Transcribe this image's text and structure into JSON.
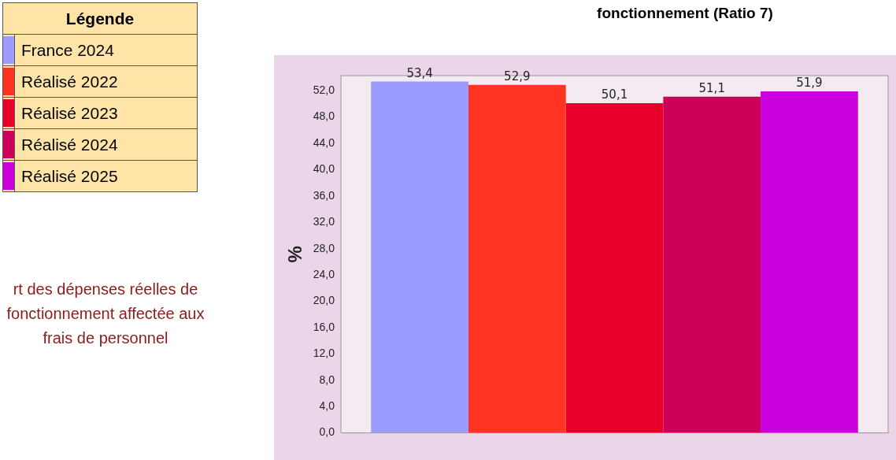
{
  "chart_data": {
    "type": "bar",
    "title": "fonctionnement (Ratio 7)",
    "ylabel": "%",
    "legend_title": "Légende",
    "categories": [
      null
    ],
    "series": [
      {
        "name": "France 2024",
        "color": "#9c9cff",
        "values": [
          53.4
        ],
        "value_labels": [
          "53,4"
        ]
      },
      {
        "name": "Réalisé 2022",
        "color": "#ff3322",
        "values": [
          52.9
        ],
        "value_labels": [
          "52,9"
        ]
      },
      {
        "name": "Réalisé 2023",
        "color": "#e8002a",
        "values": [
          50.1
        ],
        "value_labels": [
          "50,1"
        ]
      },
      {
        "name": "Réalisé 2024",
        "color": "#cc0058",
        "values": [
          51.1
        ],
        "value_labels": [
          "51,1"
        ]
      },
      {
        "name": "Réalisé 2025",
        "color": "#cc00dd",
        "values": [
          51.9
        ],
        "value_labels": [
          "51,9"
        ]
      }
    ],
    "ylim": [
      0,
      54.3
    ],
    "yticks": [
      {
        "value": 0,
        "label": "0,0"
      },
      {
        "value": 4,
        "label": "4,0"
      },
      {
        "value": 8,
        "label": "8,0"
      },
      {
        "value": 12,
        "label": "12,0"
      },
      {
        "value": 16,
        "label": "16,0"
      },
      {
        "value": 20,
        "label": "20,0"
      },
      {
        "value": 24,
        "label": "24,0"
      },
      {
        "value": 28,
        "label": "28,0"
      },
      {
        "value": 32,
        "label": "32,0"
      },
      {
        "value": 36,
        "label": "36,0"
      },
      {
        "value": 40,
        "label": "40,0"
      },
      {
        "value": 44,
        "label": "44,0"
      },
      {
        "value": 48,
        "label": "48,0"
      },
      {
        "value": 52,
        "label": "52,0"
      }
    ],
    "grid": false,
    "legend": "top left",
    "annotations": [
      "rt des dépenses réelles de fonctionnement affectée aux frais de personnel"
    ]
  }
}
